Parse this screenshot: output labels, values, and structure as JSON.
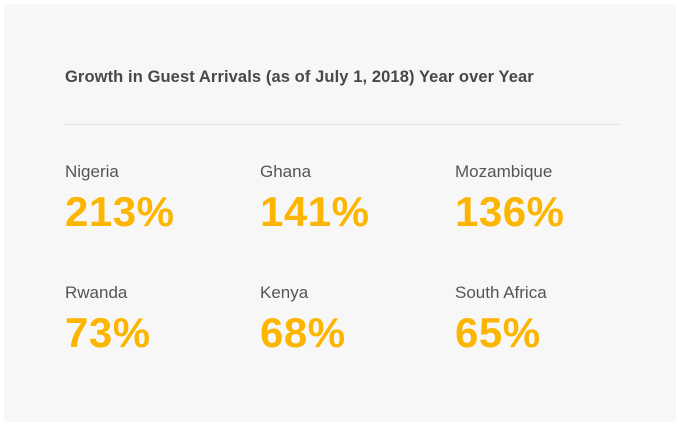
{
  "title": "Growth in Guest Arrivals (as of July 1, 2018) Year over Year",
  "accent_color": "#fcb500",
  "stats": [
    {
      "country": "Nigeria",
      "value": "213%"
    },
    {
      "country": "Ghana",
      "value": "141%"
    },
    {
      "country": "Mozambique",
      "value": "136%"
    },
    {
      "country": "Rwanda",
      "value": "73%"
    },
    {
      "country": "Kenya",
      "value": "68%"
    },
    {
      "country": "South Africa",
      "value": "65%"
    }
  ]
}
